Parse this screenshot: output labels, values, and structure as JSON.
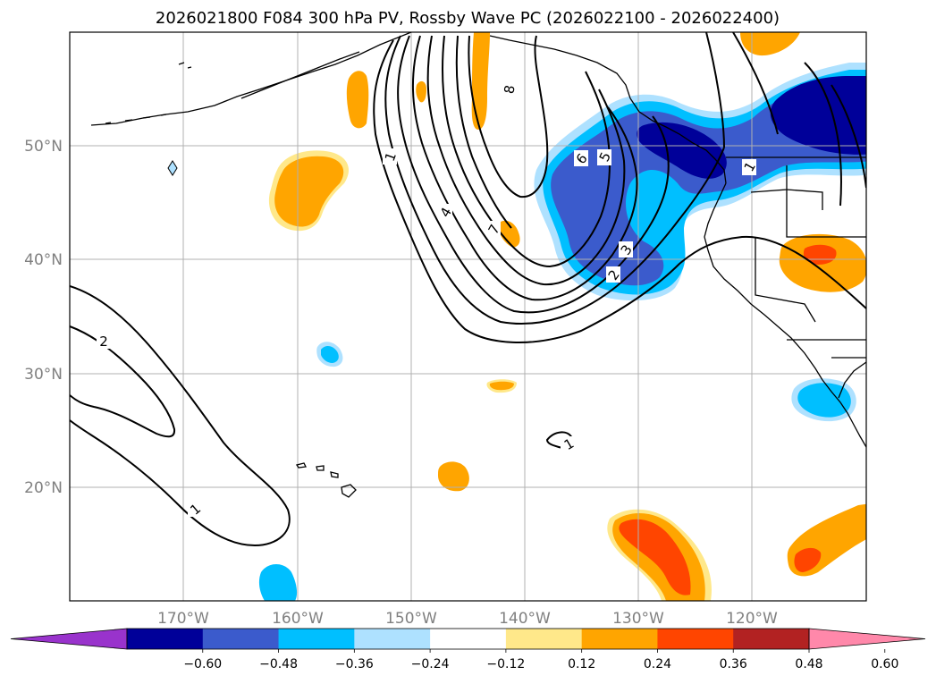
{
  "title": "2026021800 F084 300 hPa PV, Rossby Wave PC (2026022100 - 2026022400)",
  "longitude_labels": [
    "170°W",
    "160°W",
    "150°W",
    "140°W",
    "130°W",
    "120°W"
  ],
  "latitude_labels": [
    "50°N",
    "40°N",
    "30°N",
    "20°N"
  ],
  "contour_labels": [
    "1",
    "2",
    "3",
    "4",
    "5",
    "6",
    "7",
    "8",
    "1",
    "2",
    "1",
    "1"
  ],
  "colorbar": {
    "ticks": [
      "−0.60",
      "−0.48",
      "−0.36",
      "−0.24",
      "−0.12",
      "0.12",
      "0.24",
      "0.36",
      "0.48",
      "0.60"
    ],
    "colors": [
      "#9933cc",
      "#000099",
      "#3b5bcc",
      "#00bfff",
      "#aee1ff",
      "#ffffff",
      "#ffe88a",
      "#ffa500",
      "#ff4500",
      "#b22222",
      "#ff88aa"
    ]
  },
  "shading_colors": {
    "neg_strong": "#000099",
    "neg_med": "#3b5bcc",
    "neg_weak": "#00bfff",
    "neg_faint": "#aee1ff",
    "pos_faint": "#ffe88a",
    "pos_weak": "#ffa500",
    "pos_med": "#ff4500"
  }
}
